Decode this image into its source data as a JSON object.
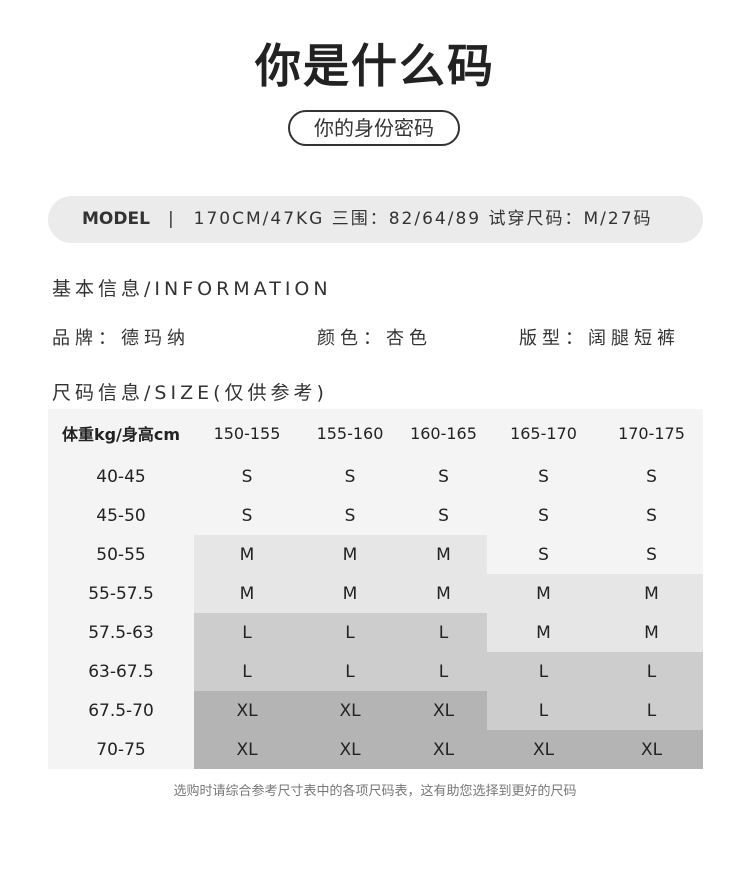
{
  "title": "你是什么码",
  "subtitle": "你的身份密码",
  "model_bar": {
    "label": "MODEL",
    "separator": "|",
    "details": "170CM/47KG 三围：82/64/89 试穿尺码：M/27码"
  },
  "info_heading": "基本信息/INFORMATION",
  "info": {
    "brand": "品牌：德玛纳",
    "color": "颜色：杏色",
    "fit": "版型：阔腿短裤"
  },
  "size_heading": "尺码信息/SIZE(仅供参考)",
  "size_table": {
    "corner": "体重kg/身高cm",
    "heights": [
      "150-155",
      "155-160",
      "160-165",
      "165-170",
      "170-175"
    ],
    "rows": [
      {
        "weight": "40-45",
        "sizes": [
          "S",
          "S",
          "S",
          "S",
          "S"
        ]
      },
      {
        "weight": "45-50",
        "sizes": [
          "S",
          "S",
          "S",
          "S",
          "S"
        ]
      },
      {
        "weight": "50-55",
        "sizes": [
          "M",
          "M",
          "M",
          "S",
          "S"
        ]
      },
      {
        "weight": "55-57.5",
        "sizes": [
          "M",
          "M",
          "M",
          "M",
          "M"
        ]
      },
      {
        "weight": "57.5-63",
        "sizes": [
          "L",
          "L",
          "L",
          "M",
          "M"
        ]
      },
      {
        "weight": "63-67.5",
        "sizes": [
          "L",
          "L",
          "L",
          "L",
          "L"
        ]
      },
      {
        "weight": "67.5-70",
        "sizes": [
          "XL",
          "XL",
          "XL",
          "L",
          "L"
        ]
      },
      {
        "weight": "70-75",
        "sizes": [
          "XL",
          "XL",
          "XL",
          "XL",
          "XL"
        ]
      }
    ],
    "size_colors": {
      "S": "#f4f4f4",
      "M": "#e6e6e6",
      "L": "#cdcdcd",
      "XL": "#b4b4b4"
    }
  },
  "note": "选购时请综合参考尺寸表中的各项尺码表，这有助您选择到更好的尺码"
}
